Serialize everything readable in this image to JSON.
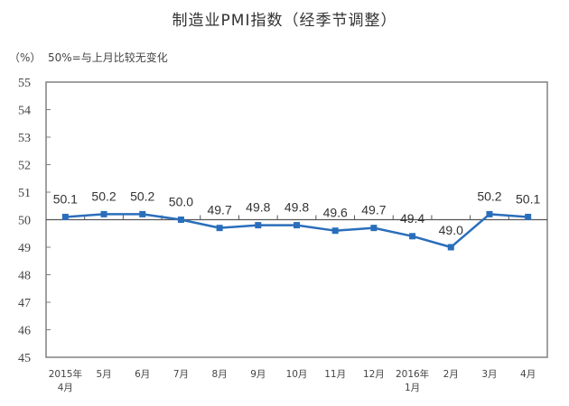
{
  "header": {
    "title": "制造业PMI指数（经季节调整）",
    "unit": "（%）",
    "note": "50%=与上月比较无变化"
  },
  "colors": {
    "line": "#2a6ebb",
    "axis": "#808080",
    "text": "#333333"
  },
  "chart_data": {
    "type": "line",
    "title": "制造业PMI指数（经季节调整）",
    "subtitle": "50%=与上月比较无变化",
    "xlabel": "",
    "ylabel": "（%）",
    "ylim": [
      45,
      55
    ],
    "yticks": [
      45,
      46,
      47,
      48,
      49,
      50,
      51,
      52,
      53,
      54,
      55
    ],
    "reference_line": 50,
    "grid": false,
    "legend": null,
    "categories": [
      "2015年\n4月",
      "5月",
      "6月",
      "7月",
      "8月",
      "9月",
      "10月",
      "11月",
      "12月",
      "2016年\n1月",
      "2月",
      "3月",
      "4月"
    ],
    "category_lines": [
      [
        "2015年",
        "4月"
      ],
      [
        "5月"
      ],
      [
        "6月"
      ],
      [
        "7月"
      ],
      [
        "8月"
      ],
      [
        "9月"
      ],
      [
        "10月"
      ],
      [
        "11月"
      ],
      [
        "12月"
      ],
      [
        "2016年",
        "1月"
      ],
      [
        "2月"
      ],
      [
        "3月"
      ],
      [
        "4月"
      ]
    ],
    "series": [
      {
        "name": "制造业PMI",
        "values": [
          50.1,
          50.2,
          50.2,
          50.0,
          49.7,
          49.8,
          49.8,
          49.6,
          49.7,
          49.4,
          49.0,
          50.2,
          50.1
        ],
        "labels": [
          "50.1",
          "50.2",
          "50.2",
          "50.0",
          "49.7",
          "49.8",
          "49.8",
          "49.6",
          "49.7",
          "49.4",
          "49.0",
          "50.2",
          "50.1"
        ]
      }
    ]
  }
}
